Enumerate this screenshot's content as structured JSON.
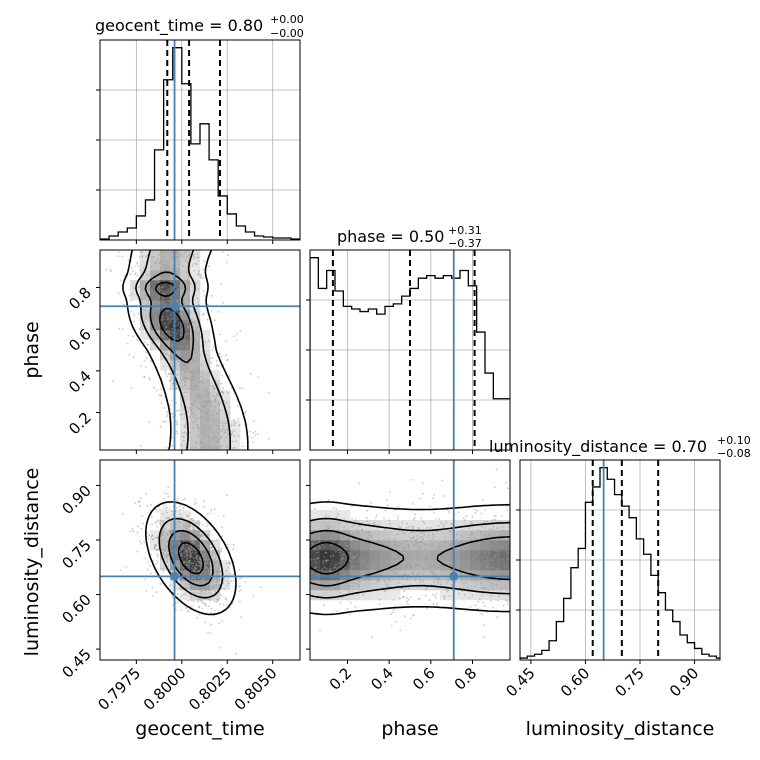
{
  "colors": {
    "truth": "#4682b4",
    "hist": "#000000",
    "grid": "#b0b0b0",
    "points": "#9a9a9a"
  },
  "chart_data": {
    "type": "corner",
    "parameters": [
      "geocent_time",
      "phase",
      "luminosity_distance"
    ],
    "titles": [
      {
        "main": "geocent_time = 0.80",
        "sup": "+0.00",
        "sub": "−0.00"
      },
      {
        "main": "phase = 0.50",
        "sup": "+0.31",
        "sub": "−0.37"
      },
      {
        "main": "luminosity_distance = 0.70",
        "sup": "+0.10",
        "sub": "−0.08"
      }
    ],
    "ranges": [
      [
        0.7955,
        0.8065
      ],
      [
        0.02,
        0.98
      ],
      [
        0.42,
        0.97
      ]
    ],
    "ticks": {
      "geocent_time": [
        "0.7975",
        "0.8000",
        "0.8025",
        "0.8050"
      ],
      "phase": [
        "0.2",
        "0.4",
        "0.6",
        "0.8"
      ],
      "luminosity_distance": [
        "0.45",
        "0.60",
        "0.75",
        "0.90"
      ]
    },
    "truths": [
      0.7996,
      0.71,
      0.65
    ],
    "quantiles": [
      [
        0.7992,
        0.8004,
        0.8021
      ],
      [
        0.13,
        0.5,
        0.81
      ],
      [
        0.62,
        0.7,
        0.8
      ]
    ],
    "histograms": [
      {
        "parameter": "geocent_time",
        "edges": [
          0.7955,
          0.796,
          0.7965,
          0.797,
          0.7975,
          0.798,
          0.7985,
          0.799,
          0.7995,
          0.8,
          0.8005,
          0.801,
          0.8015,
          0.802,
          0.8025,
          0.803,
          0.8035,
          0.804,
          0.8045,
          0.805,
          0.8055,
          0.806,
          0.8065
        ],
        "counts": [
          0.5,
          2,
          4,
          6,
          12,
          20,
          45,
          80,
          96,
          78,
          48,
          58,
          40,
          22,
          13,
          7,
          4,
          2,
          1.5,
          1,
          1,
          0.5
        ]
      },
      {
        "parameter": "phase",
        "edges": [
          0.02,
          0.06,
          0.1,
          0.14,
          0.18,
          0.22,
          0.26,
          0.3,
          0.34,
          0.38,
          0.42,
          0.46,
          0.5,
          0.54,
          0.58,
          0.62,
          0.66,
          0.7,
          0.74,
          0.78,
          0.82,
          0.86,
          0.9,
          0.94,
          0.98
        ],
        "counts": [
          75,
          63,
          70,
          62,
          56,
          55,
          54,
          55,
          53,
          56,
          57,
          60,
          63,
          67,
          68,
          67,
          68,
          67,
          70,
          64,
          46,
          30,
          20,
          20
        ]
      },
      {
        "parameter": "luminosity_distance",
        "edges": [
          0.42,
          0.44,
          0.46,
          0.48,
          0.5,
          0.52,
          0.54,
          0.56,
          0.58,
          0.6,
          0.62,
          0.64,
          0.66,
          0.68,
          0.7,
          0.72,
          0.74,
          0.76,
          0.78,
          0.8,
          0.82,
          0.84,
          0.86,
          0.88,
          0.9,
          0.92,
          0.94,
          0.96,
          0.97
        ],
        "counts": [
          1,
          2,
          3,
          5,
          10,
          20,
          32,
          48,
          58,
          82,
          90,
          100,
          94,
          86,
          80,
          74,
          63,
          55,
          44,
          35,
          26,
          20,
          13,
          9,
          6,
          3,
          2,
          1
        ]
      }
    ],
    "joint_panels": [
      {
        "x": "geocent_time",
        "y": "phase"
      },
      {
        "x": "geocent_time",
        "y": "luminosity_distance"
      },
      {
        "x": "phase",
        "y": "luminosity_distance"
      }
    ]
  }
}
